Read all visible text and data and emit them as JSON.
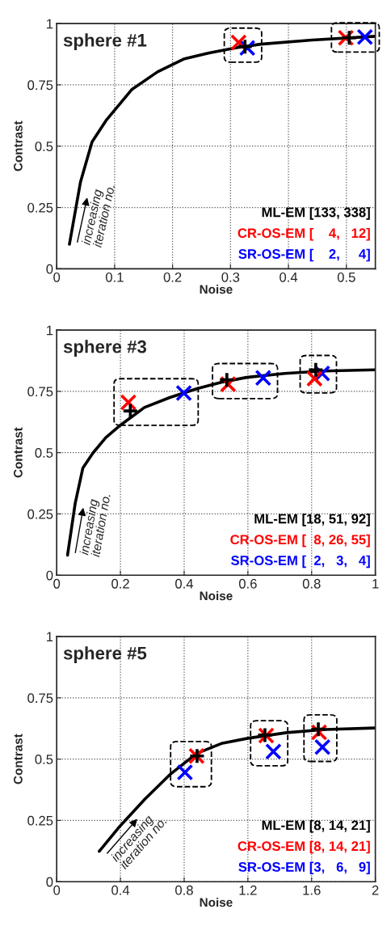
{
  "chart_data": [
    {
      "type": "line",
      "title": "sphere #1",
      "xlabel": "Noise",
      "ylabel": "Contrast",
      "xlim": [
        0,
        0.55
      ],
      "xticks": [
        0,
        0.1,
        0.2,
        0.3,
        0.4,
        0.5
      ],
      "ylim": [
        0,
        1
      ],
      "yticks": [
        0,
        0.25,
        0.5,
        0.75,
        1
      ],
      "grid": true,
      "legend": "bottom right",
      "annotations": [
        "increasing\niteration no."
      ],
      "series": [
        {
          "color": "#000000",
          "x": [
            0.022,
            0.041,
            0.061,
            0.085,
            0.13,
            0.174,
            0.219,
            0.263,
            0.308,
            0.352,
            0.441,
            0.55
          ],
          "values": [
            0.1,
            0.353,
            0.517,
            0.604,
            0.732,
            0.803,
            0.855,
            0.88,
            0.901,
            0.916,
            0.933,
            0.948
          ]
        },
        {
          "type": "scatter",
          "name": "ML-EM [133, 338]",
          "color": "#000000",
          "marker": "plus",
          "x": [
            0.325,
            0.505
          ],
          "values": [
            0.906,
            0.942
          ]
        },
        {
          "type": "scatter",
          "name": "CR-OS-EM [    4,   12]",
          "color": "#ff0000",
          "marker": "cross",
          "x": [
            0.314,
            0.499
          ],
          "values": [
            0.923,
            0.942
          ]
        },
        {
          "type": "scatter",
          "name": "SR-OS-EM [    2,     4]",
          "color": "#0000ff",
          "marker": "cross",
          "x": [
            0.329,
            0.532
          ],
          "values": [
            0.901,
            0.945
          ]
        }
      ]
    },
    {
      "type": "line",
      "title": "sphere #3",
      "xlabel": "Noise",
      "ylabel": "Contrast",
      "xlim": [
        0,
        1
      ],
      "xticks": [
        0,
        0.2,
        0.4,
        0.6,
        0.8,
        1
      ],
      "ylim": [
        0,
        1
      ],
      "yticks": [
        0,
        0.25,
        0.5,
        0.75,
        1
      ],
      "grid": true,
      "legend": "bottom right",
      "annotations": [
        "increasing\niteration no."
      ],
      "series": [
        {
          "color": "#000000",
          "x": [
            0.034,
            0.058,
            0.082,
            0.114,
            0.154,
            0.2,
            0.275,
            0.355,
            0.441,
            0.516,
            0.596,
            0.716,
            0.837,
            1.0
          ],
          "values": [
            0.082,
            0.293,
            0.437,
            0.499,
            0.561,
            0.612,
            0.684,
            0.725,
            0.761,
            0.787,
            0.807,
            0.823,
            0.833,
            0.838
          ]
        },
        {
          "type": "scatter",
          "name": "ML-EM [18, 51, 92]",
          "color": "#000000",
          "marker": "plus",
          "x": [
            0.231,
            0.534,
            0.813
          ],
          "values": [
            0.67,
            0.797,
            0.838
          ]
        },
        {
          "type": "scatter",
          "name": "CR-OS-EM [  8, 26, 55]",
          "color": "#ff0000",
          "marker": "cross",
          "x": [
            0.225,
            0.538,
            0.809
          ],
          "values": [
            0.705,
            0.779,
            0.802
          ]
        },
        {
          "type": "scatter",
          "name": "SR-OS-EM [  2,   3,   4]",
          "color": "#0000ff",
          "marker": "cross",
          "x": [
            0.399,
            0.648,
            0.833
          ],
          "values": [
            0.743,
            0.805,
            0.823
          ]
        }
      ]
    },
    {
      "type": "line",
      "title": "sphere #5",
      "xlabel": "Noise",
      "ylabel": "Contrast",
      "xlim": [
        0,
        2
      ],
      "xticks": [
        0,
        0.4,
        0.8,
        1.2,
        1.6,
        2
      ],
      "ylim": [
        0,
        1
      ],
      "yticks": [
        0,
        0.25,
        0.5,
        0.75,
        1
      ],
      "grid": true,
      "legend": "bottom right",
      "annotations": [
        "increasing\niteration no."
      ],
      "series": [
        {
          "color": "#000000",
          "x": [
            0.267,
            0.392,
            0.554,
            0.716,
            0.878,
            1.04,
            1.2,
            1.444,
            1.687,
            2.0
          ],
          "values": [
            0.124,
            0.223,
            0.337,
            0.44,
            0.523,
            0.565,
            0.585,
            0.608,
            0.621,
            0.627
          ]
        },
        {
          "type": "scatter",
          "name": "ML-EM [8, 14, 21]",
          "color": "#000000",
          "marker": "plus",
          "x": [
            0.881,
            1.307,
            1.642
          ],
          "values": [
            0.513,
            0.598,
            0.622
          ]
        },
        {
          "type": "scatter",
          "name": "CR-OS-EM [8, 14, 21]",
          "color": "#ff0000",
          "marker": "cross",
          "x": [
            0.878,
            1.315,
            1.647
          ],
          "values": [
            0.513,
            0.596,
            0.609
          ]
        },
        {
          "type": "scatter",
          "name": "SR-OS-EM [3,   6,   9]",
          "color": "#0000ff",
          "marker": "cross",
          "x": [
            0.805,
            1.36,
            1.668
          ],
          "values": [
            0.446,
            0.531,
            0.549
          ]
        }
      ]
    }
  ]
}
